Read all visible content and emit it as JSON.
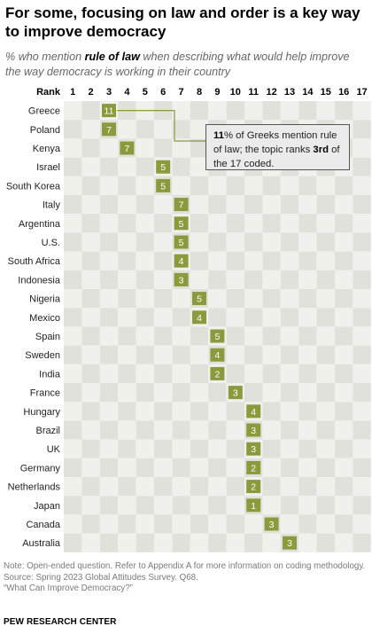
{
  "title": "For some, focusing on law and order is a key way to improve democracy",
  "subtitle": {
    "before": "% who mention ",
    "bold": "rule of law",
    "after": " when describing what would help improve the way democracy is working in their country"
  },
  "callout": {
    "bold_value": "11",
    "text1": "% of Greeks mention rule of law; the topic ranks ",
    "bold_rank": "3rd",
    "text2": " of the 17 coded."
  },
  "note": "Note: Open-ended question. Refer to Appendix A for more information on coding methodology.",
  "source": "Source: Spring 2023 Global Attitudes Survey. Q68.",
  "report": "“What Can Improve Democracy?”",
  "footer": "PEW RESEARCH CENTER",
  "colors": {
    "accent": "#8a9a3c",
    "grid_a": "#f0f0ec",
    "grid_b": "#e1e1dc"
  },
  "chart_data": {
    "type": "table",
    "header_label": "Rank",
    "ranks": [
      1,
      2,
      3,
      4,
      5,
      6,
      7,
      8,
      9,
      10,
      11,
      12,
      13,
      14,
      15,
      16,
      17
    ],
    "rows": [
      {
        "country": "Greece",
        "rank": 3,
        "value": 11
      },
      {
        "country": "Poland",
        "rank": 3,
        "value": 7
      },
      {
        "country": "Kenya",
        "rank": 4,
        "value": 7
      },
      {
        "country": "Israel",
        "rank": 6,
        "value": 5
      },
      {
        "country": "South Korea",
        "rank": 6,
        "value": 5
      },
      {
        "country": "Italy",
        "rank": 7,
        "value": 7
      },
      {
        "country": "Argentina",
        "rank": 7,
        "value": 5
      },
      {
        "country": "U.S.",
        "rank": 7,
        "value": 5
      },
      {
        "country": "South Africa",
        "rank": 7,
        "value": 4
      },
      {
        "country": "Indonesia",
        "rank": 7,
        "value": 3
      },
      {
        "country": "Nigeria",
        "rank": 8,
        "value": 5
      },
      {
        "country": "Mexico",
        "rank": 8,
        "value": 4
      },
      {
        "country": "Spain",
        "rank": 9,
        "value": 5
      },
      {
        "country": "Sweden",
        "rank": 9,
        "value": 4
      },
      {
        "country": "India",
        "rank": 9,
        "value": 2
      },
      {
        "country": "France",
        "rank": 10,
        "value": 3
      },
      {
        "country": "Hungary",
        "rank": 11,
        "value": 4
      },
      {
        "country": "Brazil",
        "rank": 11,
        "value": 3
      },
      {
        "country": "UK",
        "rank": 11,
        "value": 3
      },
      {
        "country": "Germany",
        "rank": 11,
        "value": 2
      },
      {
        "country": "Netherlands",
        "rank": 11,
        "value": 2
      },
      {
        "country": "Japan",
        "rank": 11,
        "value": 1
      },
      {
        "country": "Canada",
        "rank": 12,
        "value": 3
      },
      {
        "country": "Australia",
        "rank": 13,
        "value": 3
      }
    ]
  }
}
